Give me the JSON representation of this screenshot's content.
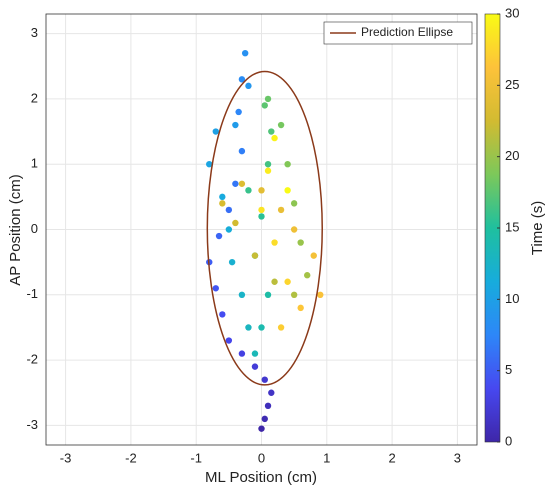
{
  "chart_data": {
    "type": "scatter",
    "xlabel": "ML Position (cm)",
    "ylabel": "AP Position (cm)",
    "xlim": [
      -3.3,
      3.3
    ],
    "ylim": [
      -3.3,
      3.3
    ],
    "xticks": [
      -3,
      -2,
      -1,
      0,
      1,
      2,
      3
    ],
    "yticks": [
      -3,
      -2,
      -1,
      0,
      1,
      2,
      3
    ],
    "grid": true,
    "x": [
      0,
      0.05,
      0.1,
      0.15,
      0.05,
      -0.1,
      -0.3,
      -0.5,
      -0.6,
      -0.7,
      -0.8,
      -0.65,
      -0.5,
      -0.4,
      -0.3,
      -0.35,
      -0.3,
      -0.25,
      -0.2,
      -0.4,
      -0.7,
      -0.8,
      -0.6,
      -0.5,
      -0.45,
      -0.3,
      -0.2,
      -0.1,
      0,
      0.1,
      -0.1,
      0,
      -0.2,
      0.1,
      0.15,
      0.05,
      0.1,
      0.3,
      0.4,
      0.5,
      0.6,
      0.7,
      0.5,
      0.2,
      -0.1,
      -0.4,
      -0.6,
      -0.3,
      0,
      0.3,
      0.5,
      0.8,
      0.9,
      0.6,
      0.3,
      0.4,
      0.2,
      0,
      0.1,
      0.2,
      0.4
    ],
    "y": [
      -3.05,
      -2.9,
      -2.7,
      -2.5,
      -2.3,
      -2.1,
      -1.9,
      -1.7,
      -1.3,
      -0.9,
      -0.5,
      -0.1,
      0.3,
      0.7,
      1.2,
      1.8,
      2.3,
      2.7,
      2.2,
      1.6,
      1.5,
      1,
      0.5,
      0,
      -0.5,
      -1,
      -1.5,
      -1.9,
      -1.5,
      -1,
      -0.4,
      0.2,
      0.6,
      1,
      1.5,
      1.9,
      2,
      1.6,
      1,
      0.4,
      -0.2,
      -0.7,
      -1,
      -0.8,
      -0.4,
      0.1,
      0.4,
      0.7,
      0.6,
      0.3,
      0,
      -0.4,
      -1,
      -1.2,
      -1.5,
      -0.8,
      -0.2,
      0.3,
      0.9,
      1.4,
      0.6
    ],
    "c": [
      0,
      0.5,
      1,
      1.5,
      2,
      2.5,
      3,
      3.5,
      4,
      4.5,
      5,
      5.5,
      6,
      6.5,
      7,
      7.5,
      8,
      8.5,
      9,
      9.5,
      10,
      10.5,
      11,
      11.5,
      12,
      12.5,
      13,
      13.5,
      14,
      14.5,
      15,
      15.5,
      16,
      16.5,
      17,
      17.5,
      18,
      18.5,
      19,
      19.5,
      20,
      20.5,
      21,
      21.5,
      22,
      22.5,
      23,
      23.5,
      24,
      24.5,
      25,
      25.5,
      26,
      26.5,
      27,
      27.5,
      28,
      28.5,
      29,
      29.5,
      30
    ],
    "colorbar": {
      "label": "Time (s)",
      "clim": [
        0,
        30
      ],
      "ticks": [
        0,
        5,
        10,
        15,
        20,
        25,
        30
      ],
      "colormap": [
        "#3e26a8",
        "#4748f0",
        "#2d87f8",
        "#17acdc",
        "#1fc09e",
        "#7cc85a",
        "#d2bb31",
        "#fdc23a",
        "#f9fb15"
      ]
    },
    "ellipse": {
      "name": "Prediction Ellipse",
      "center": [
        0.05,
        0.02
      ],
      "radii": [
        0.88,
        2.4
      ],
      "color": "#8b3a1a"
    },
    "legend": "upper right"
  }
}
